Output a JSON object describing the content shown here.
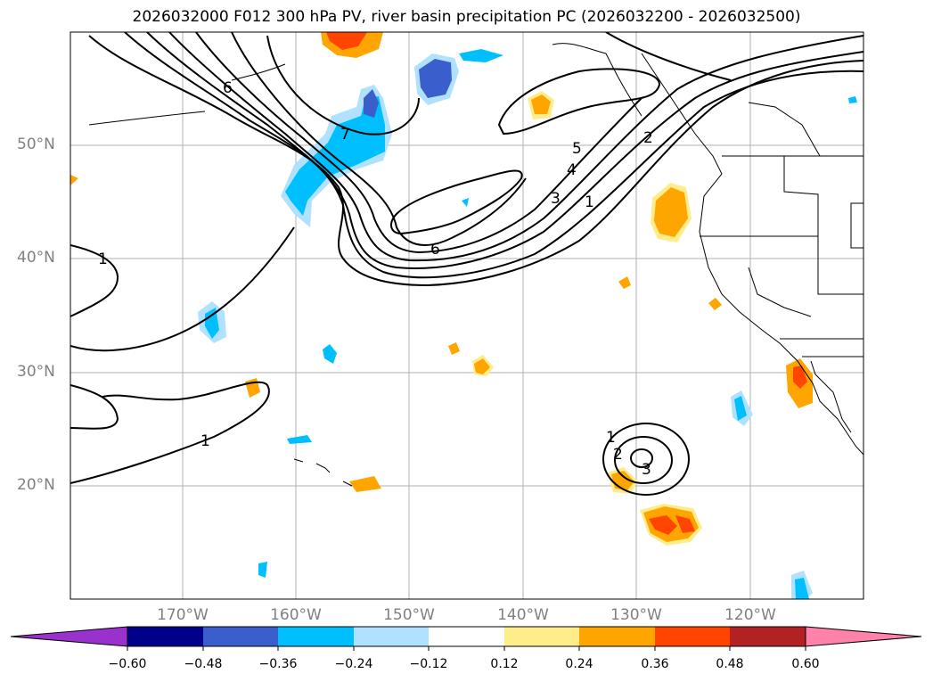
{
  "title": "2026032000 F012 300 hPa PV, river basin precipitation PC (2026032200 - 2026032500)",
  "lat_labels": [
    "50°N",
    "40°N",
    "30°N",
    "20°N"
  ],
  "lon_labels": [
    "170°W",
    "160°W",
    "150°W",
    "140°W",
    "130°W",
    "120°W"
  ],
  "contour_labels": [
    "6",
    "7",
    "5",
    "4",
    "3",
    "1",
    "6",
    "1",
    "1",
    "1",
    "2",
    "3",
    "2"
  ],
  "colorbar": {
    "ticks": [
      "−0.60",
      "−0.48",
      "−0.36",
      "−0.24",
      "−0.12",
      "0.12",
      "0.24",
      "0.36",
      "0.48",
      "0.60"
    ],
    "colors": [
      "#9932cc",
      "#00008b",
      "#3a5fcd",
      "#00bfff",
      "#b0e2ff",
      "#ffffff",
      "#ffec8b",
      "#ffa500",
      "#ff4500",
      "#b22222",
      "#ff82ab"
    ]
  }
}
